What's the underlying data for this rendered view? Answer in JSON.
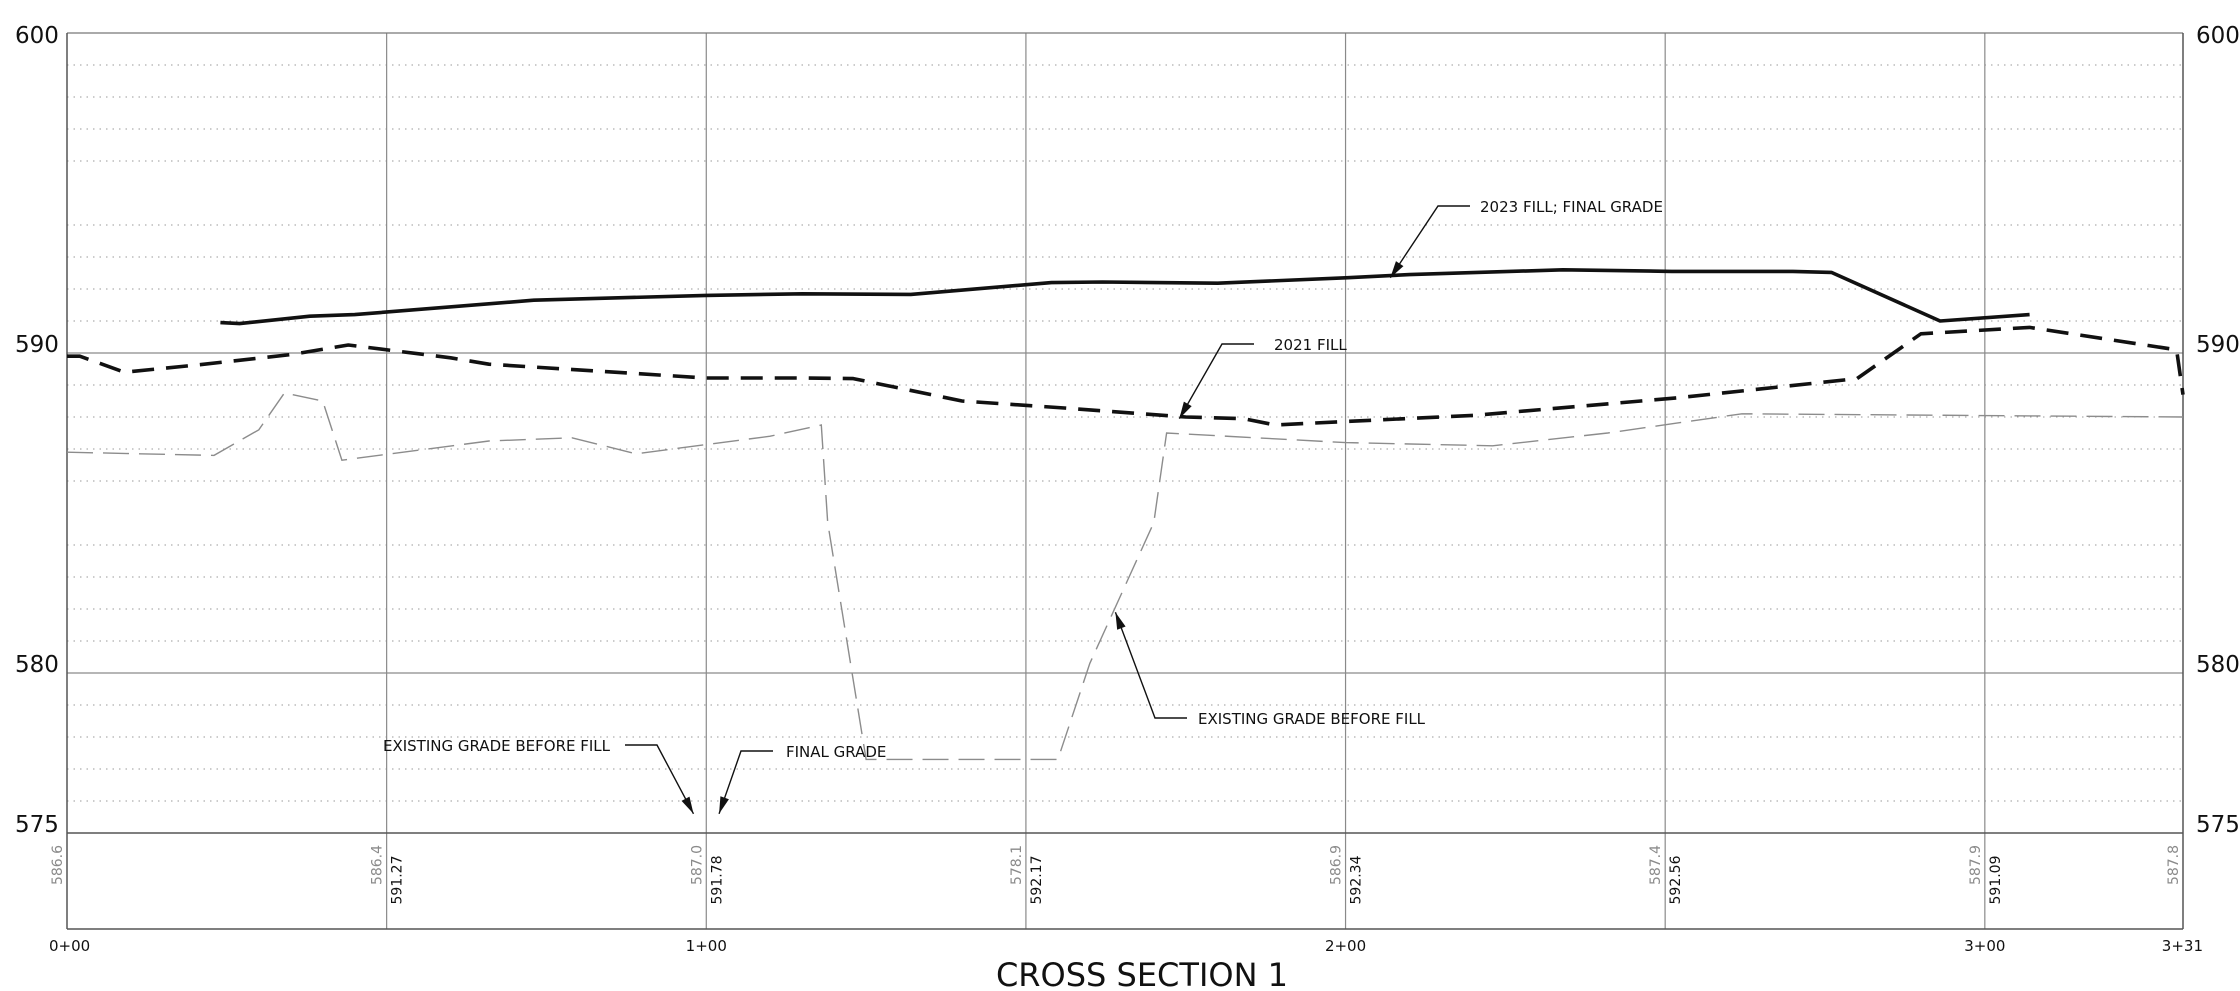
{
  "chart_data": {
    "type": "line",
    "title": "CROSS SECTION 1",
    "xlim": [
      0,
      331
    ],
    "ylim": [
      575,
      600
    ],
    "x_ticks": [
      {
        "x": 0,
        "label": "0+00"
      },
      {
        "x": 100,
        "label": "1+00"
      },
      {
        "x": 200,
        "label": "2+00"
      },
      {
        "x": 300,
        "label": "3+00"
      },
      {
        "x": 331,
        "label": "3+31"
      }
    ],
    "y_ticks": [
      {
        "y": 600,
        "label": "600"
      },
      {
        "y": 590,
        "label": "590"
      },
      {
        "y": 580,
        "label": "580"
      },
      {
        "y": 575,
        "label": "575"
      }
    ],
    "grid": "major and minor",
    "series": [
      {
        "key": "final",
        "style": "solid-thick",
        "points": [
          [
            24,
            590.95
          ],
          [
            27,
            590.92
          ],
          [
            38,
            591.15
          ],
          [
            45,
            591.2
          ],
          [
            73,
            591.65
          ],
          [
            100,
            591.8
          ],
          [
            115,
            591.85
          ],
          [
            132,
            591.83
          ],
          [
            154,
            592.2
          ],
          [
            162,
            592.22
          ],
          [
            180,
            592.18
          ],
          [
            200,
            592.35
          ],
          [
            210,
            592.45
          ],
          [
            234,
            592.6
          ],
          [
            251,
            592.55
          ],
          [
            270,
            592.55
          ],
          [
            276,
            592.52
          ],
          [
            293,
            591.0
          ],
          [
            307,
            591.2
          ]
        ]
      },
      {
        "key": "fill2021",
        "style": "dashed-thick",
        "points": [
          [
            0,
            589.9
          ],
          [
            2,
            589.9
          ],
          [
            9,
            589.4
          ],
          [
            20,
            589.62
          ],
          [
            35,
            589.95
          ],
          [
            44,
            590.25
          ],
          [
            60,
            589.85
          ],
          [
            66,
            589.65
          ],
          [
            100,
            589.22
          ],
          [
            115,
            589.22
          ],
          [
            123,
            589.2
          ],
          [
            140,
            588.5
          ],
          [
            156,
            588.28
          ],
          [
            175,
            588.0
          ],
          [
            184,
            587.95
          ],
          [
            189,
            587.75
          ],
          [
            199,
            587.85
          ],
          [
            220,
            588.05
          ],
          [
            252,
            588.6
          ],
          [
            280,
            589.2
          ],
          [
            290,
            590.6
          ],
          [
            307,
            590.8
          ],
          [
            330,
            590.1
          ],
          [
            331,
            588.7
          ]
        ]
      },
      {
        "key": "existing",
        "style": "dashed-thin-gray",
        "points": [
          [
            0,
            586.9
          ],
          [
            23,
            586.8
          ],
          [
            30,
            587.6
          ],
          [
            34,
            588.75
          ],
          [
            40,
            588.5
          ],
          [
            43,
            586.65
          ],
          [
            66,
            587.25
          ],
          [
            79,
            587.35
          ],
          [
            89,
            586.85
          ],
          [
            110,
            587.4
          ],
          [
            118,
            587.75
          ],
          [
            119,
            584.7
          ],
          [
            125,
            577.3
          ],
          [
            155,
            577.3
          ],
          [
            160,
            580.3
          ],
          [
            170,
            584.7
          ],
          [
            172,
            587.5
          ],
          [
            200,
            587.2
          ],
          [
            223,
            587.1
          ],
          [
            241,
            587.5
          ],
          [
            262,
            588.1
          ],
          [
            331,
            588.0
          ]
        ]
      }
    ],
    "annotations": [
      {
        "text": "2023 FILL; FINAL GRADE",
        "points_to": [
          207,
          592.35
        ]
      },
      {
        "text": "2021 FILL",
        "points_to": [
          174,
          587.95
        ]
      },
      {
        "text": "EXISTING GRADE BEFORE FILL",
        "points_to": [
          164,
          581.9
        ]
      },
      {
        "text": "EXISTING GRADE BEFORE FILL",
        "points_to": [
          98,
          575.6
        ]
      },
      {
        "text": "FINAL GRADE",
        "points_to": [
          102,
          575.6
        ]
      }
    ],
    "elevation_table": [
      {
        "x": 0,
        "existing": "586.6",
        "final": ""
      },
      {
        "x": 50,
        "existing": "586.4",
        "final": "591.27"
      },
      {
        "x": 100,
        "existing": "587.0",
        "final": "591.78"
      },
      {
        "x": 150,
        "existing": "578.1",
        "final": "592.17"
      },
      {
        "x": 200,
        "existing": "586.9",
        "final": "592.34"
      },
      {
        "x": 250,
        "existing": "587.4",
        "final": "592.56"
      },
      {
        "x": 300,
        "existing": "587.9",
        "final": "591.09"
      },
      {
        "x": 331,
        "existing": "587.8",
        "final": ""
      }
    ]
  }
}
